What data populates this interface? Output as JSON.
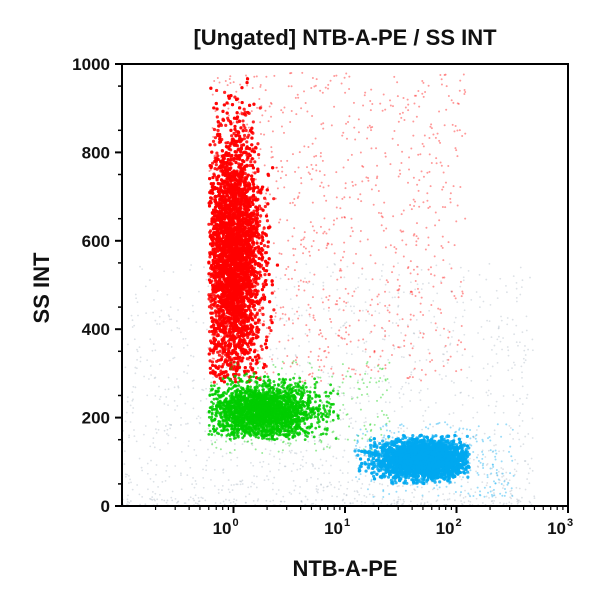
{
  "chart_data": {
    "type": "scatter",
    "title": "[Ungated] NTB-A-PE / SS INT",
    "xlabel": "NTB-A-PE",
    "ylabel": "SS INT",
    "x_scale": "log",
    "xlim": [
      0.1,
      1000
    ],
    "ylim": [
      0,
      1000
    ],
    "x_ticks": [
      {
        "base": "10",
        "exp": "0",
        "value": 1
      },
      {
        "base": "10",
        "exp": "1",
        "value": 10
      },
      {
        "base": "10",
        "exp": "2",
        "value": 100
      },
      {
        "base": "10",
        "exp": "3",
        "value": 1000
      }
    ],
    "y_ticks": [
      {
        "label": "0",
        "value": 0
      },
      {
        "label": "200",
        "value": 200
      },
      {
        "label": "400",
        "value": 400
      },
      {
        "label": "600",
        "value": 600
      },
      {
        "label": "800",
        "value": 800
      },
      {
        "label": "1000",
        "value": 1000
      }
    ],
    "grid": false,
    "legend": "none",
    "populations": [
      {
        "color": "#ff0000",
        "x_center": 1.0,
        "x_range": [
          0.6,
          2.5
        ],
        "y_center": 560,
        "y_range": [
          280,
          980
        ]
      },
      {
        "color": "#00cc00",
        "x_center": 1.8,
        "x_range": [
          0.6,
          10
        ],
        "y_center": 215,
        "y_range": [
          150,
          300
        ]
      },
      {
        "color": "#00a8f0",
        "x_center": 50,
        "x_range": [
          12,
          130
        ],
        "y_center": 105,
        "y_range": [
          50,
          160
        ]
      }
    ],
    "background_color": "#9aa8b8"
  }
}
